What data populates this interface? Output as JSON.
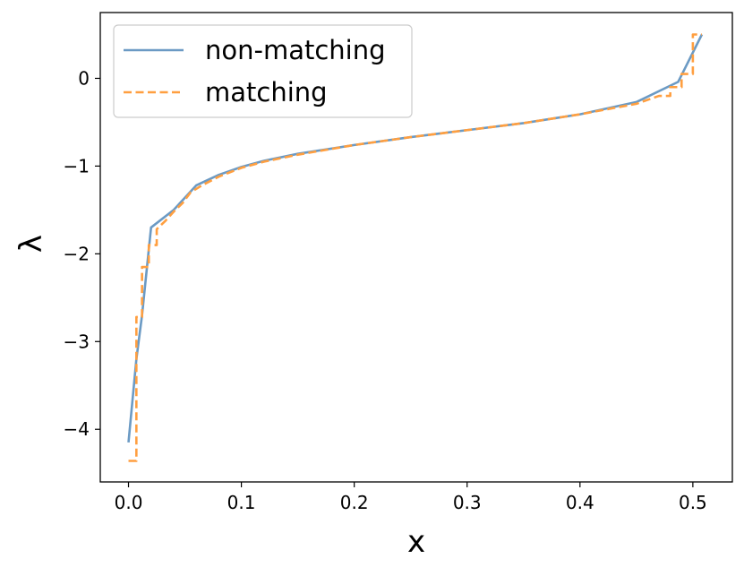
{
  "chart_data": {
    "type": "line",
    "title": "",
    "xlabel": "x",
    "ylabel": "λ",
    "xlim": [
      -0.025,
      0.535
    ],
    "ylim": [
      -4.6,
      0.75
    ],
    "xticks": [
      0.0,
      0.1,
      0.2,
      0.3,
      0.4,
      0.5
    ],
    "xtick_labels": [
      "0.0",
      "0.1",
      "0.2",
      "0.3",
      "0.4",
      "0.5"
    ],
    "yticks": [
      0,
      -1,
      -2,
      -3,
      -4
    ],
    "ytick_labels": [
      "0",
      "−1",
      "−2",
      "−3",
      "−4"
    ],
    "grid": false,
    "legend_position": "top-left",
    "series": [
      {
        "name": "non-matching",
        "color": "#6b9ac4",
        "line_style": "solid",
        "points": [
          [
            0.0,
            -4.15
          ],
          [
            0.007,
            -3.2
          ],
          [
            0.012,
            -2.7
          ],
          [
            0.02,
            -1.7
          ],
          [
            0.04,
            -1.5
          ],
          [
            0.06,
            -1.22
          ],
          [
            0.08,
            -1.1
          ],
          [
            0.1,
            -1.01
          ],
          [
            0.12,
            -0.94
          ],
          [
            0.15,
            -0.86
          ],
          [
            0.2,
            -0.76
          ],
          [
            0.25,
            -0.67
          ],
          [
            0.3,
            -0.59
          ],
          [
            0.35,
            -0.51
          ],
          [
            0.4,
            -0.41
          ],
          [
            0.45,
            -0.27
          ],
          [
            0.487,
            -0.04
          ],
          [
            0.508,
            0.5
          ]
        ]
      },
      {
        "name": "matching",
        "color": "#ff9f40",
        "line_style": "dashed",
        "points": [
          [
            0.0,
            -4.36
          ],
          [
            0.007,
            -4.36
          ],
          [
            0.007,
            -2.72
          ],
          [
            0.012,
            -2.72
          ],
          [
            0.012,
            -2.15
          ],
          [
            0.018,
            -2.15
          ],
          [
            0.018,
            -1.9
          ],
          [
            0.025,
            -1.9
          ],
          [
            0.025,
            -1.72
          ],
          [
            0.033,
            -1.62
          ],
          [
            0.04,
            -1.52
          ],
          [
            0.048,
            -1.42
          ],
          [
            0.055,
            -1.3
          ],
          [
            0.065,
            -1.22
          ],
          [
            0.08,
            -1.12
          ],
          [
            0.1,
            -1.02
          ],
          [
            0.12,
            -0.95
          ],
          [
            0.15,
            -0.87
          ],
          [
            0.2,
            -0.76
          ],
          [
            0.25,
            -0.67
          ],
          [
            0.3,
            -0.59
          ],
          [
            0.35,
            -0.51
          ],
          [
            0.4,
            -0.41
          ],
          [
            0.45,
            -0.29
          ],
          [
            0.47,
            -0.2
          ],
          [
            0.48,
            -0.2
          ],
          [
            0.48,
            -0.1
          ],
          [
            0.49,
            -0.1
          ],
          [
            0.49,
            0.05
          ],
          [
            0.5,
            0.05
          ],
          [
            0.5,
            0.5
          ],
          [
            0.508,
            0.5
          ]
        ]
      }
    ]
  }
}
